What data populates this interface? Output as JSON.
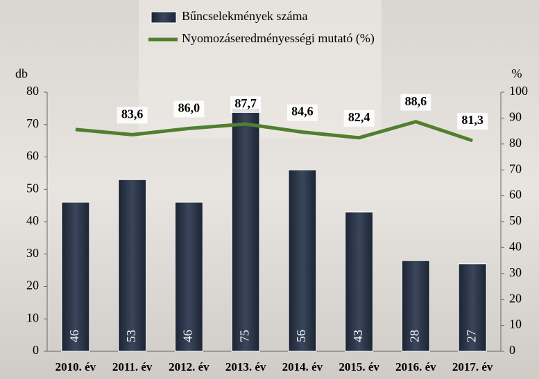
{
  "chart_data": {
    "type": "bar_line",
    "categories": [
      "2010. év",
      "2011. év",
      "2012. év",
      "2013. év",
      "2014. év",
      "2015. év",
      "2016. év",
      "2017. év"
    ],
    "series": [
      {
        "name": "Bűncselekmények száma",
        "type": "bar",
        "color": "#283244",
        "values": [
          46,
          53,
          46,
          75,
          56,
          43,
          28,
          27
        ]
      },
      {
        "name": "Nyomozáseredményességi mutató (%)",
        "type": "line",
        "axis": "y2",
        "color": "#4f7f2f",
        "values": [
          85.6,
          83.6,
          86.0,
          87.7,
          84.6,
          82.4,
          88.6,
          81.3
        ],
        "value_labels": [
          null,
          "83,6",
          "86,0",
          "87,7",
          "84,6",
          "82,4",
          "88,6",
          "81,3"
        ]
      }
    ],
    "ylabel": "db",
    "y2label": "%",
    "ylim": [
      0,
      80
    ],
    "yticks": [
      0,
      10,
      20,
      30,
      40,
      50,
      60,
      70,
      80
    ],
    "y2lim": [
      0,
      100
    ],
    "y2ticks": [
      0,
      10,
      20,
      30,
      40,
      50,
      60,
      70,
      80,
      90,
      100
    ],
    "legend": "top"
  }
}
